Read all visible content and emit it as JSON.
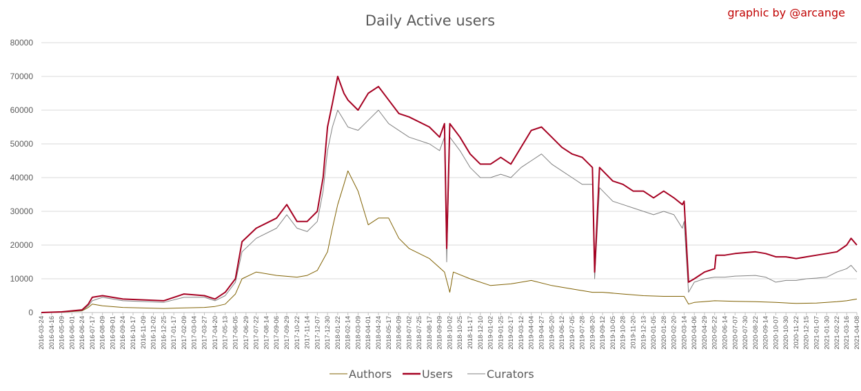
{
  "chart_data": {
    "type": "line",
    "title": "Daily Active users",
    "credit": "graphic by @arcange",
    "xlabel": "",
    "ylabel": "",
    "ylim": [
      0,
      80000
    ],
    "yticks": [
      "0",
      "10000",
      "20000",
      "30000",
      "40000",
      "50000",
      "60000",
      "70000",
      "80000"
    ],
    "grid": true,
    "legend_position": "bottom",
    "colors": {
      "Authors": "#7f6000",
      "Users": "#a50021",
      "Curators": "#808080"
    },
    "xticks": [
      "2016-03-24",
      "2016-04-16",
      "2016-05-09",
      "2016-06-01",
      "2016-06-24",
      "2016-07-17",
      "2016-08-09",
      "2016-09-01",
      "2016-09-24",
      "2016-10-17",
      "2016-11-09",
      "2016-12-02",
      "2016-12-25",
      "2017-01-17",
      "2017-02-09",
      "2017-03-04",
      "2017-03-27",
      "2017-04-20",
      "2017-05-13",
      "2017-06-05",
      "2017-06-29",
      "2017-07-22",
      "2017-08-14",
      "2017-09-06",
      "2017-09-29",
      "2017-10-22",
      "2017-11-14",
      "2017-12-07",
      "2017-12-30",
      "2018-01-22",
      "2018-02-14",
      "2018-03-09",
      "2018-04-01",
      "2018-04-24",
      "2018-05-17",
      "2018-06-09",
      "2018-07-02",
      "2018-07-25",
      "2018-08-17",
      "2018-09-09",
      "2018-10-02",
      "2018-10-25",
      "2018-11-17",
      "2018-12-10",
      "2019-01-02",
      "2019-01-25",
      "2019-02-17",
      "2019-03-12",
      "2019-04-04",
      "2019-04-27",
      "2019-05-20",
      "2019-06-12",
      "2019-07-05",
      "2019-07-28",
      "2019-08-20",
      "2019-09-12",
      "2019-10-05",
      "2019-10-28",
      "2019-11-20",
      "2019-12-13",
      "2020-01-05",
      "2020-01-28",
      "2020-02-20",
      "2020-03-14",
      "2020-04-06",
      "2020-04-29",
      "2020-05-22",
      "2020-06-14",
      "2020-07-07",
      "2020-07-30",
      "2020-08-22",
      "2020-09-14",
      "2020-10-07",
      "2020-10-30",
      "2020-11-22",
      "2020-12-15",
      "2021-01-07",
      "2021-01-30",
      "2021-02-22",
      "2021-03-16",
      "2021-04-08"
    ],
    "series": [
      {
        "name": "Authors",
        "x": [
          "2016-03-24",
          "2016-05-09",
          "2016-06-24",
          "2016-07-08",
          "2016-07-17",
          "2016-08-09",
          "2016-09-24",
          "2016-12-25",
          "2017-03-27",
          "2017-04-20",
          "2017-05-13",
          "2017-06-05",
          "2017-06-20",
          "2017-07-22",
          "2017-09-06",
          "2017-10-22",
          "2017-11-14",
          "2017-12-07",
          "2017-12-30",
          "2018-01-10",
          "2018-01-22",
          "2018-02-05",
          "2018-02-14",
          "2018-03-09",
          "2018-04-01",
          "2018-04-24",
          "2018-05-17",
          "2018-06-09",
          "2018-07-02",
          "2018-08-17",
          "2018-09-20",
          "2018-10-02",
          "2018-10-10",
          "2018-11-17",
          "2019-01-02",
          "2019-02-17",
          "2019-04-04",
          "2019-05-20",
          "2019-07-05",
          "2019-08-20",
          "2019-09-12",
          "2019-10-28",
          "2019-12-13",
          "2020-01-28",
          "2020-03-14",
          "2020-03-24",
          "2020-04-06",
          "2020-05-22",
          "2020-07-07",
          "2020-08-22",
          "2020-10-07",
          "2020-11-22",
          "2021-01-07",
          "2021-02-22",
          "2021-03-16",
          "2021-04-08"
        ],
        "values": [
          0,
          100,
          500,
          1500,
          2500,
          2000,
          1500,
          1200,
          1500,
          1800,
          2500,
          5500,
          10000,
          12000,
          11000,
          10500,
          11000,
          12500,
          18000,
          25000,
          32000,
          38000,
          42000,
          36000,
          26000,
          28000,
          28000,
          22000,
          19000,
          16000,
          12000,
          6000,
          12000,
          10000,
          8000,
          8500,
          9500,
          8000,
          7000,
          6000,
          6000,
          5500,
          5000,
          4800,
          4800,
          2500,
          3000,
          3500,
          3300,
          3200,
          3000,
          2700,
          2800,
          3200,
          3500,
          4000
        ]
      },
      {
        "name": "Users",
        "x": [
          "2016-03-24",
          "2016-05-09",
          "2016-06-24",
          "2016-07-08",
          "2016-07-17",
          "2016-08-09",
          "2016-09-24",
          "2016-12-25",
          "2017-02-09",
          "2017-03-27",
          "2017-04-20",
          "2017-05-13",
          "2017-06-05",
          "2017-06-20",
          "2017-07-22",
          "2017-09-06",
          "2017-09-29",
          "2017-10-22",
          "2017-11-14",
          "2017-12-07",
          "2017-12-20",
          "2017-12-30",
          "2018-01-10",
          "2018-01-22",
          "2018-02-05",
          "2018-02-14",
          "2018-03-09",
          "2018-04-01",
          "2018-04-24",
          "2018-05-17",
          "2018-06-09",
          "2018-07-02",
          "2018-08-17",
          "2018-09-09",
          "2018-09-20",
          "2018-09-25",
          "2018-10-02",
          "2018-10-25",
          "2018-11-17",
          "2018-12-10",
          "2019-01-02",
          "2019-01-25",
          "2019-02-17",
          "2019-03-12",
          "2019-04-04",
          "2019-04-27",
          "2019-05-20",
          "2019-06-12",
          "2019-07-05",
          "2019-07-28",
          "2019-08-20",
          "2019-08-25",
          "2019-09-05",
          "2019-10-05",
          "2019-10-28",
          "2019-11-20",
          "2019-12-13",
          "2020-01-05",
          "2020-01-28",
          "2020-02-20",
          "2020-03-10",
          "2020-03-14",
          "2020-03-24",
          "2020-04-06",
          "2020-04-29",
          "2020-05-22",
          "2020-05-25",
          "2020-06-14",
          "2020-07-07",
          "2020-08-22",
          "2020-09-14",
          "2020-10-07",
          "2020-10-30",
          "2020-11-22",
          "2020-12-15",
          "2021-01-07",
          "2021-01-30",
          "2021-02-22",
          "2021-03-16",
          "2021-03-26",
          "2021-04-08"
        ],
        "values": [
          0,
          200,
          800,
          2500,
          4500,
          5000,
          4000,
          3500,
          5500,
          5000,
          4000,
          6000,
          10000,
          21000,
          25000,
          28000,
          32000,
          27000,
          27000,
          30000,
          40000,
          55000,
          62000,
          70000,
          65000,
          63000,
          60000,
          65000,
          67000,
          63000,
          59000,
          58000,
          55000,
          52000,
          56000,
          19000,
          56000,
          52000,
          47000,
          44000,
          44000,
          46000,
          44000,
          49000,
          54000,
          55000,
          52000,
          49000,
          47000,
          46000,
          43000,
          12000,
          43000,
          39000,
          38000,
          36000,
          36000,
          34000,
          36000,
          34000,
          32000,
          33000,
          9000,
          10000,
          12000,
          13000,
          17000,
          17000,
          17500,
          18000,
          17500,
          16500,
          16500,
          16000,
          16500,
          17000,
          17500,
          18000,
          20000,
          22000,
          20000
        ]
      },
      {
        "name": "Curators",
        "x": [
          "2016-03-24",
          "2016-05-09",
          "2016-06-24",
          "2016-07-08",
          "2016-07-17",
          "2016-08-09",
          "2016-09-24",
          "2016-12-25",
          "2017-02-09",
          "2017-03-27",
          "2017-04-20",
          "2017-05-13",
          "2017-06-05",
          "2017-06-20",
          "2017-07-22",
          "2017-09-06",
          "2017-09-29",
          "2017-10-22",
          "2017-11-14",
          "2017-12-07",
          "2017-12-20",
          "2017-12-30",
          "2018-01-10",
          "2018-01-22",
          "2018-02-05",
          "2018-02-14",
          "2018-03-09",
          "2018-04-01",
          "2018-04-24",
          "2018-05-17",
          "2018-06-09",
          "2018-07-02",
          "2018-08-17",
          "2018-09-09",
          "2018-09-20",
          "2018-09-25",
          "2018-10-02",
          "2018-10-25",
          "2018-11-17",
          "2018-12-10",
          "2019-01-02",
          "2019-01-25",
          "2019-02-17",
          "2019-03-12",
          "2019-04-04",
          "2019-04-27",
          "2019-05-20",
          "2019-06-12",
          "2019-07-05",
          "2019-07-28",
          "2019-08-20",
          "2019-08-25",
          "2019-09-05",
          "2019-10-05",
          "2019-10-28",
          "2019-11-20",
          "2019-12-13",
          "2020-01-05",
          "2020-01-28",
          "2020-02-20",
          "2020-03-10",
          "2020-03-14",
          "2020-03-24",
          "2020-04-06",
          "2020-04-29",
          "2020-05-22",
          "2020-05-25",
          "2020-06-14",
          "2020-07-07",
          "2020-08-22",
          "2020-09-14",
          "2020-10-07",
          "2020-10-30",
          "2020-11-22",
          "2020-12-15",
          "2021-01-07",
          "2021-01-30",
          "2021-02-22",
          "2021-03-16",
          "2021-03-26",
          "2021-04-08"
        ],
        "values": [
          0,
          150,
          600,
          2000,
          3500,
          4500,
          3500,
          3000,
          4500,
          4500,
          3500,
          5000,
          9000,
          18000,
          22000,
          25000,
          29000,
          25000,
          24000,
          27000,
          36000,
          48000,
          55000,
          60000,
          57000,
          55000,
          54000,
          57000,
          60000,
          56000,
          54000,
          52000,
          50000,
          48000,
          52000,
          15000,
          52000,
          48000,
          43000,
          40000,
          40000,
          41000,
          40000,
          43000,
          45000,
          47000,
          44000,
          42000,
          40000,
          38000,
          38000,
          10000,
          37000,
          33000,
          32000,
          31000,
          30000,
          29000,
          30000,
          29000,
          25000,
          27000,
          6000,
          9000,
          10000,
          10500,
          10500,
          10500,
          10800,
          11000,
          10500,
          9000,
          9500,
          9500,
          10000,
          10200,
          10500,
          12000,
          13000,
          14000,
          12000
        ]
      }
    ]
  }
}
